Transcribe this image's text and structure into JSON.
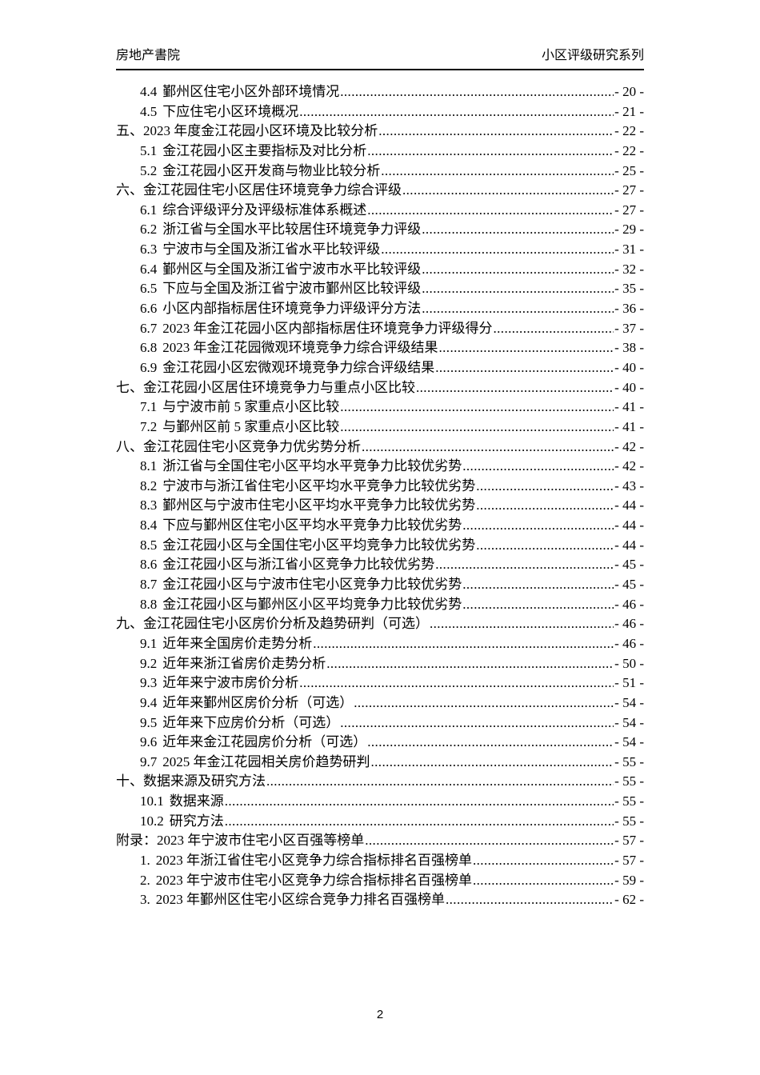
{
  "page": {
    "header": {
      "left": "房地产書院",
      "right": "小区评级研究系列"
    },
    "footer": {
      "page_number": "2"
    }
  },
  "toc": {
    "items": [
      {
        "level": 2,
        "num": "4.4",
        "text": "鄞州区住宅小区外部环境情况",
        "page": "- 20 -"
      },
      {
        "level": 2,
        "num": "4.5",
        "text": "下应住宅小区环境概况",
        "page": "- 21 -"
      },
      {
        "level": 1,
        "num": "五、",
        "text": "2023 年度金江花园小区环境及比较分析",
        "page": "- 22 -"
      },
      {
        "level": 2,
        "num": "5.1",
        "text": "金江花园小区主要指标及对比分析",
        "page": "- 22 -"
      },
      {
        "level": 2,
        "num": "5.2",
        "text": "金江花园小区开发商与物业比较分析",
        "page": "- 25 -"
      },
      {
        "level": 1,
        "num": "六、",
        "text": "金江花园住宅小区居住环境竞争力综合评级",
        "page": "- 27 -"
      },
      {
        "level": 2,
        "num": "6.1",
        "text": "综合评级评分及评级标准体系概述",
        "page": "- 27 -"
      },
      {
        "level": 2,
        "num": "6.2",
        "text": "浙江省与全国水平比较居住环境竞争力评级",
        "page": "- 29 -"
      },
      {
        "level": 2,
        "num": "6.3",
        "text": "宁波市与全国及浙江省水平比较评级",
        "page": "- 31 -"
      },
      {
        "level": 2,
        "num": "6.4",
        "text": "鄞州区与全国及浙江省宁波市水平比较评级",
        "page": "- 32 -"
      },
      {
        "level": 2,
        "num": "6.5",
        "text": "下应与全国及浙江省宁波市鄞州区比较评级",
        "page": "- 35 -"
      },
      {
        "level": 2,
        "num": "6.6",
        "text": "小区内部指标居住环境竞争力评级评分方法",
        "page": "- 36 -"
      },
      {
        "level": 2,
        "num": "6.7",
        "text": "2023 年金江花园小区内部指标居住环境竞争力评级得分",
        "page": "- 37 -"
      },
      {
        "level": 2,
        "num": "6.8",
        "text": "2023 年金江花园微观环境竞争力综合评级结果",
        "page": "- 38 -"
      },
      {
        "level": 2,
        "num": "6.9",
        "text": "金江花园小区宏微观环境竞争力综合评级结果",
        "page": "- 40 -"
      },
      {
        "level": 1,
        "num": "七、",
        "text": "金江花园小区居住环境竞争力与重点小区比较",
        "page": "- 40 -"
      },
      {
        "level": 2,
        "num": "7.1",
        "text": "与宁波市前 5 家重点小区比较",
        "page": "- 41 -"
      },
      {
        "level": 2,
        "num": "7.2",
        "text": "与鄞州区前 5 家重点小区比较",
        "page": "- 41 -"
      },
      {
        "level": 1,
        "num": "八、",
        "text": "金江花园住宅小区竞争力优劣势分析",
        "page": "- 42 -"
      },
      {
        "level": 2,
        "num": "8.1",
        "text": "浙江省与全国住宅小区平均水平竞争力比较优劣势",
        "page": "- 42 -"
      },
      {
        "level": 2,
        "num": "8.2",
        "text": "宁波市与浙江省住宅小区平均水平竞争力比较优劣势",
        "page": "- 43 -"
      },
      {
        "level": 2,
        "num": "8.3",
        "text": "鄞州区与宁波市住宅小区平均水平竞争力比较优劣势",
        "page": "- 44 -"
      },
      {
        "level": 2,
        "num": "8.4",
        "text": "下应与鄞州区住宅小区平均水平竞争力比较优劣势",
        "page": "- 44 -"
      },
      {
        "level": 2,
        "num": "8.5",
        "text": "金江花园小区与全国住宅小区平均竞争力比较优劣势",
        "page": "- 44 -"
      },
      {
        "level": 2,
        "num": "8.6",
        "text": "金江花园小区与浙江省小区竞争力比较优劣势",
        "page": "- 45 -"
      },
      {
        "level": 2,
        "num": "8.7",
        "text": "金江花园小区与宁波市住宅小区竞争力比较优劣势",
        "page": "- 45 -"
      },
      {
        "level": 2,
        "num": "8.8",
        "text": "金江花园小区与鄞州区小区平均竞争力比较优劣势",
        "page": "- 46 -"
      },
      {
        "level": 1,
        "num": "九、",
        "text": "金江花园住宅小区房价分析及趋势研判（可选）",
        "page": "- 46 -"
      },
      {
        "level": 2,
        "num": "9.1",
        "text": "近年来全国房价走势分析",
        "page": "- 46 -"
      },
      {
        "level": 2,
        "num": "9.2",
        "text": "近年来浙江省房价走势分析",
        "page": "- 50 -"
      },
      {
        "level": 2,
        "num": "9.3",
        "text": "近年来宁波市房价分析",
        "page": "- 51 -"
      },
      {
        "level": 2,
        "num": "9.4",
        "text": "近年来鄞州区房价分析（可选）",
        "page": "- 54 -"
      },
      {
        "level": 2,
        "num": "9.5",
        "text": "近年来下应房价分析（可选）",
        "page": "- 54 -"
      },
      {
        "level": 2,
        "num": "9.6",
        "text": "近年来金江花园房价分析（可选）",
        "page": "- 54 -"
      },
      {
        "level": 2,
        "num": "9.7",
        "text": "2025 年金江花园相关房价趋势研判",
        "page": "- 55 -"
      },
      {
        "level": 1,
        "num": "十、",
        "text": "数据来源及研究方法",
        "page": "- 55 -"
      },
      {
        "level": 2,
        "num": "10.1",
        "text": "数据来源",
        "page": "- 55 -"
      },
      {
        "level": 2,
        "num": "10.2",
        "text": "研究方法",
        "page": "- 55 -"
      },
      {
        "level": 1,
        "num": "附录：",
        "text": "2023 年宁波市住宅小区百强等榜单",
        "page": "- 57 -"
      },
      {
        "level": 2,
        "num": "1.",
        "text": "2023 年浙江省住宅小区竞争力综合指标排名百强榜单",
        "page": "- 57 -"
      },
      {
        "level": 2,
        "num": "2.",
        "text": "2023 年宁波市住宅小区竞争力综合指标排名百强榜单",
        "page": "- 59 -"
      },
      {
        "level": 2,
        "num": "3.",
        "text": "2023 年鄞州区住宅小区综合竞争力排名百强榜单",
        "page": "- 62 -"
      }
    ]
  }
}
